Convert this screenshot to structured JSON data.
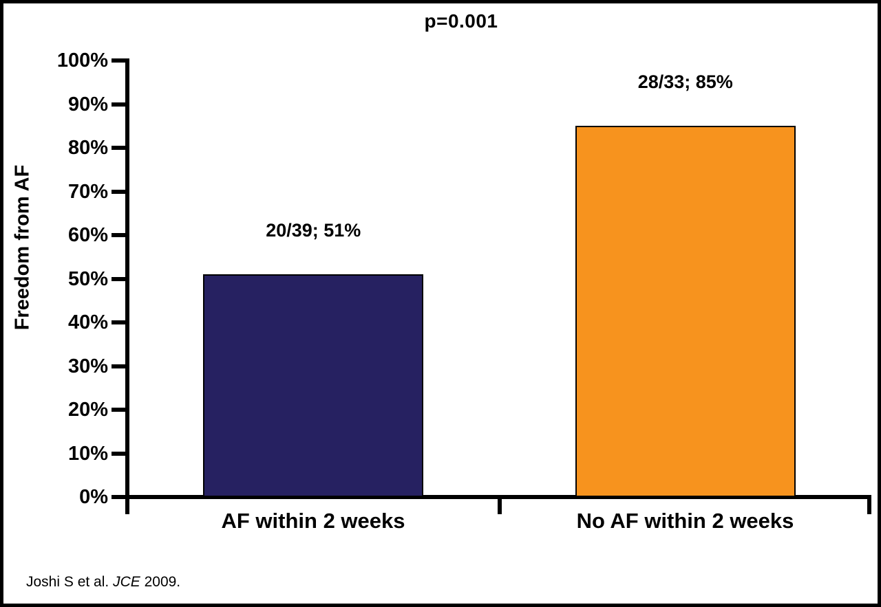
{
  "chart_data": {
    "type": "bar",
    "title": "",
    "annotation_p_value": "p=0.001",
    "ylabel": "Freedom from AF",
    "xlabel": "",
    "categories": [
      "AF within 2 weeks",
      "No AF within 2 weeks"
    ],
    "values": [
      51,
      85
    ],
    "bar_labels": [
      "20/39; 51%",
      "28/33; 85%"
    ],
    "bar_colors": [
      "#262161",
      "#F7931E"
    ],
    "ylim": [
      0,
      100
    ],
    "ytick_labels": [
      "100%",
      "90%",
      "80%",
      "70%",
      "60%",
      "50%",
      "40%",
      "30%",
      "20%",
      "10%",
      "0%"
    ],
    "grid": false,
    "legend_position": "none"
  },
  "citation": {
    "prefix": "Joshi S et al. ",
    "journal": "JCE",
    "suffix": " 2009."
  },
  "colors": {
    "bar_navy": "#262161",
    "bar_orange": "#F7931E",
    "axis": "#000000",
    "background": "#FFFFFF",
    "frame_border": "#000000"
  }
}
